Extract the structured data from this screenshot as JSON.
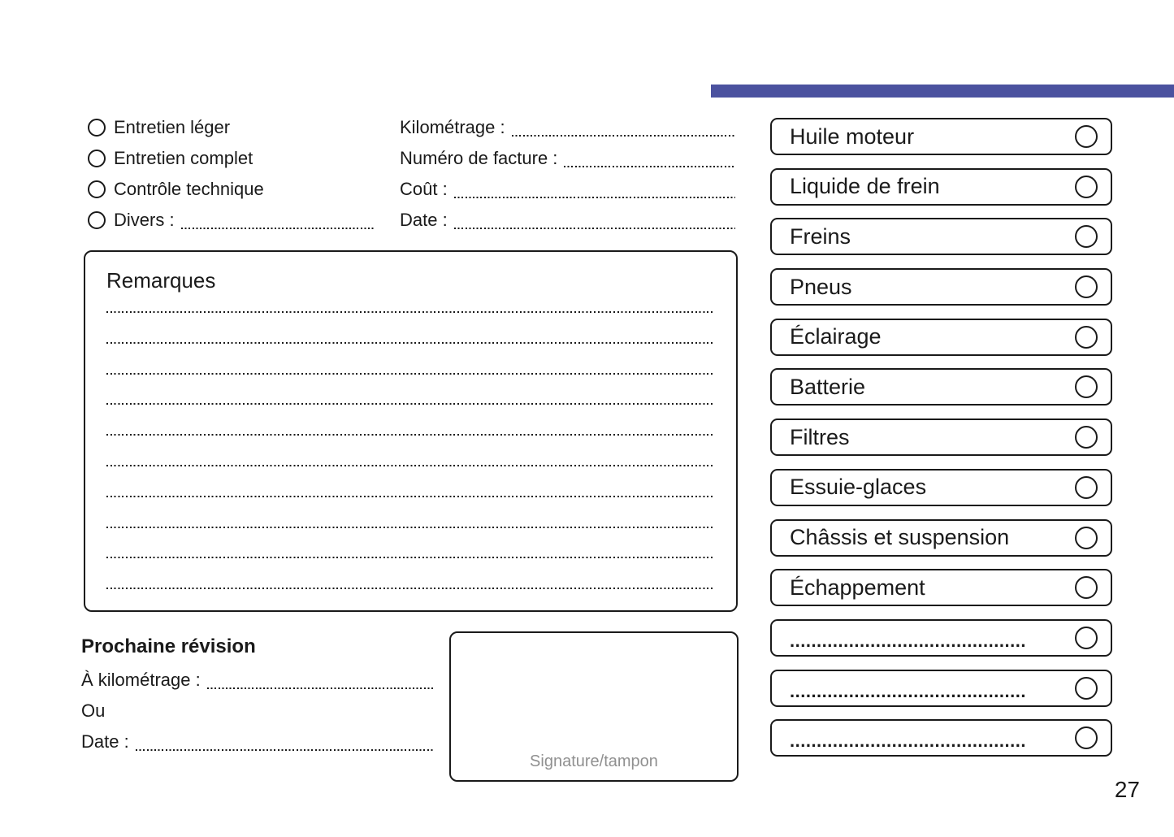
{
  "page": {
    "number": "27"
  },
  "accent": {
    "bar_color": "#4b529f"
  },
  "service_types": {
    "items": [
      {
        "label": "Entretien léger"
      },
      {
        "label": "Entretien complet"
      },
      {
        "label": "Contrôle technique"
      },
      {
        "label": "Divers :",
        "dots": true
      }
    ]
  },
  "invoice_fields": {
    "items": [
      {
        "label": "Kilométrage :",
        "dots": true
      },
      {
        "label": "Numéro de facture :",
        "dots": true
      },
      {
        "label": "Coût :",
        "dots": true
      },
      {
        "label": "Date :",
        "dots": true
      }
    ]
  },
  "remarks": {
    "title": "Remarques",
    "line_count": 10
  },
  "next_service": {
    "title": "Prochaine révision",
    "items": [
      {
        "label": "À kilométrage :",
        "dots": true
      },
      {
        "label": "Ou"
      },
      {
        "label": "Date :",
        "dots": true
      }
    ]
  },
  "signature": {
    "placeholder": "Signature/tampon"
  },
  "checklist": {
    "items": [
      {
        "label": "Huile moteur"
      },
      {
        "label": "Liquide de frein"
      },
      {
        "label": "Freins"
      },
      {
        "label": "Pneus"
      },
      {
        "label": "Éclairage"
      },
      {
        "label": "Batterie"
      },
      {
        "label": "Filtres"
      },
      {
        "label": "Essuie-glaces"
      },
      {
        "label": "Châssis et suspension"
      },
      {
        "label": "Échappement"
      },
      {
        "label": "............................................",
        "blank": true
      },
      {
        "label": "............................................",
        "blank": true
      },
      {
        "label": "............................................",
        "blank": true
      }
    ]
  }
}
